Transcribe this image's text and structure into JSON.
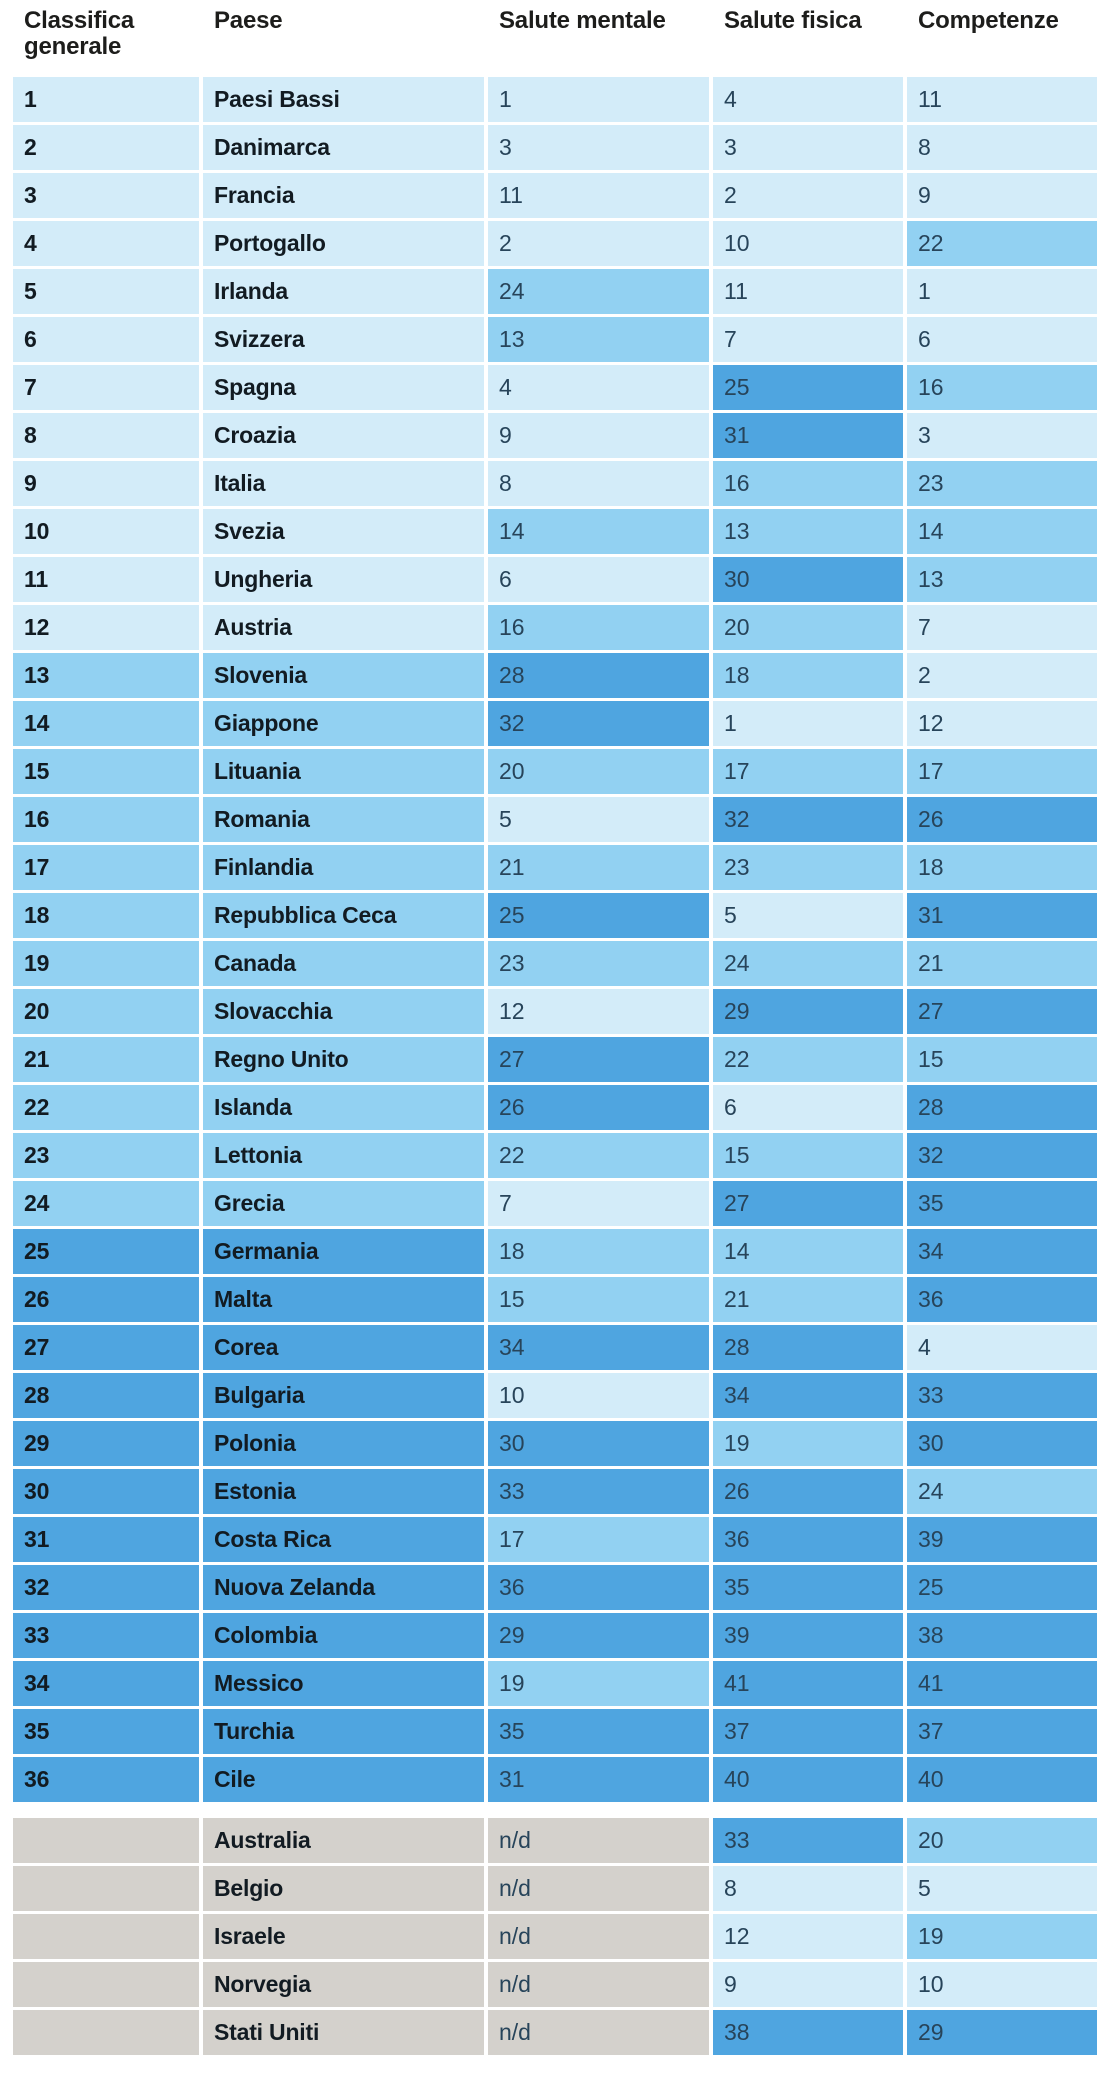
{
  "header": {
    "columns": [
      "Classifica generale",
      "Paese",
      "Salute mentale",
      "Salute fisica",
      "Competenze"
    ]
  },
  "colors": {
    "light": "#d3ecf9",
    "medium": "#92d1f2",
    "dark": "#4fa5e0",
    "gray": "#d4d1cc"
  },
  "bins": {
    "light_max": 12,
    "medium_max": 24
  },
  "no_data_label": "n/d",
  "chart_data": {
    "type": "table",
    "title": "",
    "columns": [
      "Classifica generale",
      "Paese",
      "Salute mentale",
      "Salute fisica",
      "Competenze"
    ],
    "color_scale": "light #d3ecf9 for ranks 1-12, medium #92d1f2 for 13-24, dark #4fa5e0 for 25+, gray #d4d1cc for n/d",
    "rows": [
      {
        "rank": "1",
        "country": "Paesi Bassi",
        "mental": "1",
        "physical": "4",
        "skills": "11"
      },
      {
        "rank": "2",
        "country": "Danimarca",
        "mental": "3",
        "physical": "3",
        "skills": "8"
      },
      {
        "rank": "3",
        "country": "Francia",
        "mental": "11",
        "physical": "2",
        "skills": "9"
      },
      {
        "rank": "4",
        "country": "Portogallo",
        "mental": "2",
        "physical": "10",
        "skills": "22"
      },
      {
        "rank": "5",
        "country": "Irlanda",
        "mental": "24",
        "physical": "11",
        "skills": "1"
      },
      {
        "rank": "6",
        "country": "Svizzera",
        "mental": "13",
        "physical": "7",
        "skills": "6"
      },
      {
        "rank": "7",
        "country": "Spagna",
        "mental": "4",
        "physical": "25",
        "skills": "16"
      },
      {
        "rank": "8",
        "country": "Croazia",
        "mental": "9",
        "physical": "31",
        "skills": "3"
      },
      {
        "rank": "9",
        "country": "Italia",
        "mental": "8",
        "physical": "16",
        "skills": "23"
      },
      {
        "rank": "10",
        "country": "Svezia",
        "mental": "14",
        "physical": "13",
        "skills": "14"
      },
      {
        "rank": "11",
        "country": "Ungheria",
        "mental": "6",
        "physical": "30",
        "skills": "13"
      },
      {
        "rank": "12",
        "country": "Austria",
        "mental": "16",
        "physical": "20",
        "skills": "7"
      },
      {
        "rank": "13",
        "country": "Slovenia",
        "mental": "28",
        "physical": "18",
        "skills": "2"
      },
      {
        "rank": "14",
        "country": "Giappone",
        "mental": "32",
        "physical": "1",
        "skills": "12"
      },
      {
        "rank": "15",
        "country": "Lituania",
        "mental": "20",
        "physical": "17",
        "skills": "17"
      },
      {
        "rank": "16",
        "country": "Romania",
        "mental": "5",
        "physical": "32",
        "skills": "26"
      },
      {
        "rank": "17",
        "country": "Finlandia",
        "mental": "21",
        "physical": "23",
        "skills": "18"
      },
      {
        "rank": "18",
        "country": "Repubblica Ceca",
        "mental": "25",
        "physical": "5",
        "skills": "31"
      },
      {
        "rank": "19",
        "country": "Canada",
        "mental": "23",
        "physical": "24",
        "skills": "21"
      },
      {
        "rank": "20",
        "country": "Slovacchia",
        "mental": "12",
        "physical": "29",
        "skills": "27"
      },
      {
        "rank": "21",
        "country": "Regno Unito",
        "mental": "27",
        "physical": "22",
        "skills": "15"
      },
      {
        "rank": "22",
        "country": "Islanda",
        "mental": "26",
        "physical": "6",
        "skills": "28"
      },
      {
        "rank": "23",
        "country": "Lettonia",
        "mental": "22",
        "physical": "15",
        "skills": "32"
      },
      {
        "rank": "24",
        "country": "Grecia",
        "mental": "7",
        "physical": "27",
        "skills": "35"
      },
      {
        "rank": "25",
        "country": "Germania",
        "mental": "18",
        "physical": "14",
        "skills": "34"
      },
      {
        "rank": "26",
        "country": "Malta",
        "mental": "15",
        "physical": "21",
        "skills": "36"
      },
      {
        "rank": "27",
        "country": "Corea",
        "mental": "34",
        "physical": "28",
        "skills": "4"
      },
      {
        "rank": "28",
        "country": "Bulgaria",
        "mental": "10",
        "physical": "34",
        "skills": "33"
      },
      {
        "rank": "29",
        "country": "Polonia",
        "mental": "30",
        "physical": "19",
        "skills": "30"
      },
      {
        "rank": "30",
        "country": "Estonia",
        "mental": "33",
        "physical": "26",
        "skills": "24"
      },
      {
        "rank": "31",
        "country": "Costa Rica",
        "mental": "17",
        "physical": "36",
        "skills": "39"
      },
      {
        "rank": "32",
        "country": "Nuova Zelanda",
        "mental": "36",
        "physical": "35",
        "skills": "25"
      },
      {
        "rank": "33",
        "country": "Colombia",
        "mental": "29",
        "physical": "39",
        "skills": "38"
      },
      {
        "rank": "34",
        "country": "Messico",
        "mental": "19",
        "physical": "41",
        "skills": "41"
      },
      {
        "rank": "35",
        "country": "Turchia",
        "mental": "35",
        "physical": "37",
        "skills": "37"
      },
      {
        "rank": "36",
        "country": "Cile",
        "mental": "31",
        "physical": "40",
        "skills": "40"
      }
    ],
    "extra_rows": [
      {
        "rank": "",
        "country": "Australia",
        "mental": "n/d",
        "physical": "33",
        "skills": "20"
      },
      {
        "rank": "",
        "country": "Belgio",
        "mental": "n/d",
        "physical": "8",
        "skills": "5"
      },
      {
        "rank": "",
        "country": "Israele",
        "mental": "n/d",
        "physical": "12",
        "skills": "19"
      },
      {
        "rank": "",
        "country": "Norvegia",
        "mental": "n/d",
        "physical": "9",
        "skills": "10"
      },
      {
        "rank": "",
        "country": "Stati Uniti",
        "mental": "n/d",
        "physical": "38",
        "skills": "29"
      }
    ]
  }
}
